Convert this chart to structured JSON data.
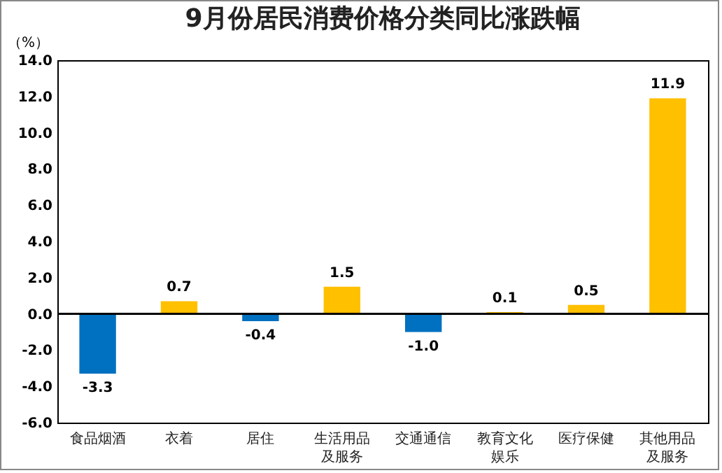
{
  "chart_data": {
    "type": "bar",
    "title": "9月份居民消费价格分类同比涨跌幅",
    "ylabel": "（%）",
    "categories": [
      "食品烟酒",
      "衣着",
      "居住",
      "生活用品及服务",
      "交通通信",
      "教育文化娱乐",
      "医疗保健",
      "其他用品及服务"
    ],
    "values": [
      -3.3,
      0.7,
      -0.4,
      1.5,
      -1.0,
      0.1,
      0.5,
      11.9
    ],
    "value_labels": [
      "-3.3",
      "0.7",
      "-0.4",
      "1.5",
      "-1.0",
      "0.1",
      "0.5",
      "11.9"
    ],
    "colors": [
      "#0070c0",
      "#ffc000",
      "#0070c0",
      "#ffc000",
      "#0070c0",
      "#ffc000",
      "#ffc000",
      "#ffc000"
    ],
    "ylim": [
      -6,
      14
    ],
    "yticks": [
      {
        "value": -6,
        "label": "-6.0"
      },
      {
        "value": -4,
        "label": "-4.0"
      },
      {
        "value": -2,
        "label": "-2.0"
      },
      {
        "value": 0,
        "label": "0.0"
      },
      {
        "value": 2,
        "label": "2.0"
      },
      {
        "value": 4,
        "label": "4.0"
      },
      {
        "value": 6,
        "label": "6.0"
      },
      {
        "value": 8,
        "label": "8.0"
      },
      {
        "value": 10,
        "label": "10.0"
      },
      {
        "value": 12,
        "label": "12.0"
      },
      {
        "value": 14,
        "label": "14.0"
      }
    ]
  }
}
